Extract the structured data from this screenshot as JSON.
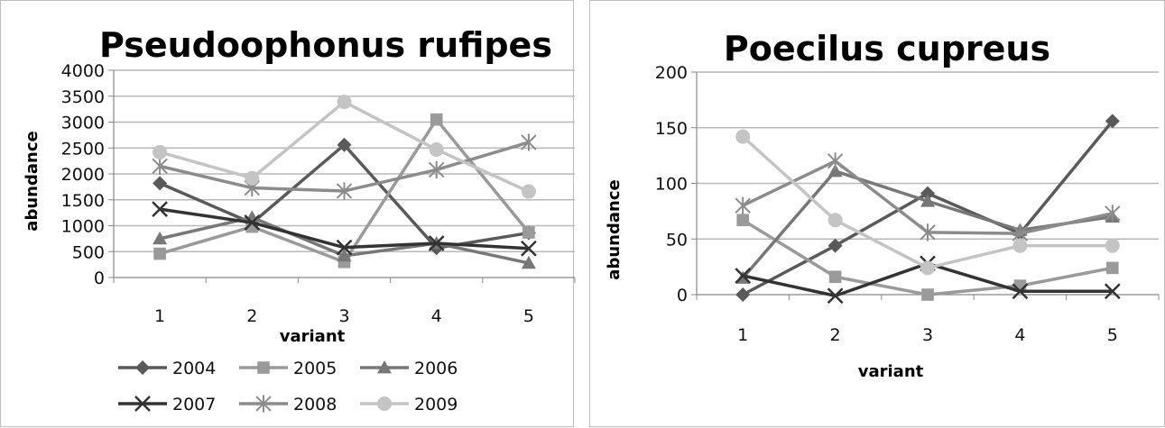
{
  "colors": {
    "2004": "#5a5a5a",
    "2005": "#9a9a9a",
    "2006": "#777777",
    "2007": "#333333",
    "2008": "#8c8c8c",
    "2009": "#c4c4c4",
    "grid": "#b8b8b8",
    "axis": "#888888"
  },
  "chart_data": [
    {
      "type": "line",
      "title": "Pseudoophonus rufipes",
      "xlabel": "variant",
      "ylabel": "abundance",
      "categories": [
        "1",
        "2",
        "3",
        "4",
        "5"
      ],
      "ylim": [
        0,
        4000
      ],
      "yticks": [
        "0",
        "500",
        "1000",
        "1500",
        "2000",
        "2500",
        "3000",
        "3500",
        "4000"
      ],
      "grid": true,
      "legend": "bottom",
      "series": [
        {
          "name": "2004",
          "marker": "diamond",
          "values": [
            1820,
            1050,
            2560,
            570,
            860
          ]
        },
        {
          "name": "2005",
          "marker": "square",
          "values": [
            460,
            980,
            300,
            3050,
            870
          ]
        },
        {
          "name": "2006",
          "marker": "triangle",
          "values": [
            750,
            1160,
            420,
            660,
            280
          ]
        },
        {
          "name": "2007",
          "marker": "x",
          "values": [
            1320,
            1060,
            580,
            660,
            560
          ]
        },
        {
          "name": "2008",
          "marker": "star",
          "values": [
            2150,
            1730,
            1670,
            2080,
            2610
          ]
        },
        {
          "name": "2009",
          "marker": "circle",
          "values": [
            2420,
            1920,
            3390,
            2470,
            1660
          ]
        }
      ]
    },
    {
      "type": "line",
      "title": "Poecilus cupreus",
      "xlabel": "variant",
      "ylabel": "abundance",
      "categories": [
        "1",
        "2",
        "3",
        "4",
        "5"
      ],
      "ylim": [
        0,
        200
      ],
      "yticks": [
        "0",
        "50",
        "100",
        "150",
        "200"
      ],
      "grid": true,
      "legend": "none",
      "series": [
        {
          "name": "2004",
          "marker": "diamond",
          "values": [
            0,
            44,
            91,
            55,
            156
          ]
        },
        {
          "name": "2005",
          "marker": "square",
          "values": [
            67,
            16,
            0,
            8,
            24
          ]
        },
        {
          "name": "2006",
          "marker": "triangle",
          "values": [
            15,
            111,
            84,
            58,
            70
          ]
        },
        {
          "name": "2007",
          "marker": "x",
          "values": [
            17,
            -1,
            28,
            3,
            3
          ]
        },
        {
          "name": "2008",
          "marker": "star",
          "values": [
            80,
            120,
            56,
            55,
            73
          ]
        },
        {
          "name": "2009",
          "marker": "circle",
          "values": [
            142,
            67,
            24,
            44,
            44
          ]
        }
      ]
    }
  ]
}
